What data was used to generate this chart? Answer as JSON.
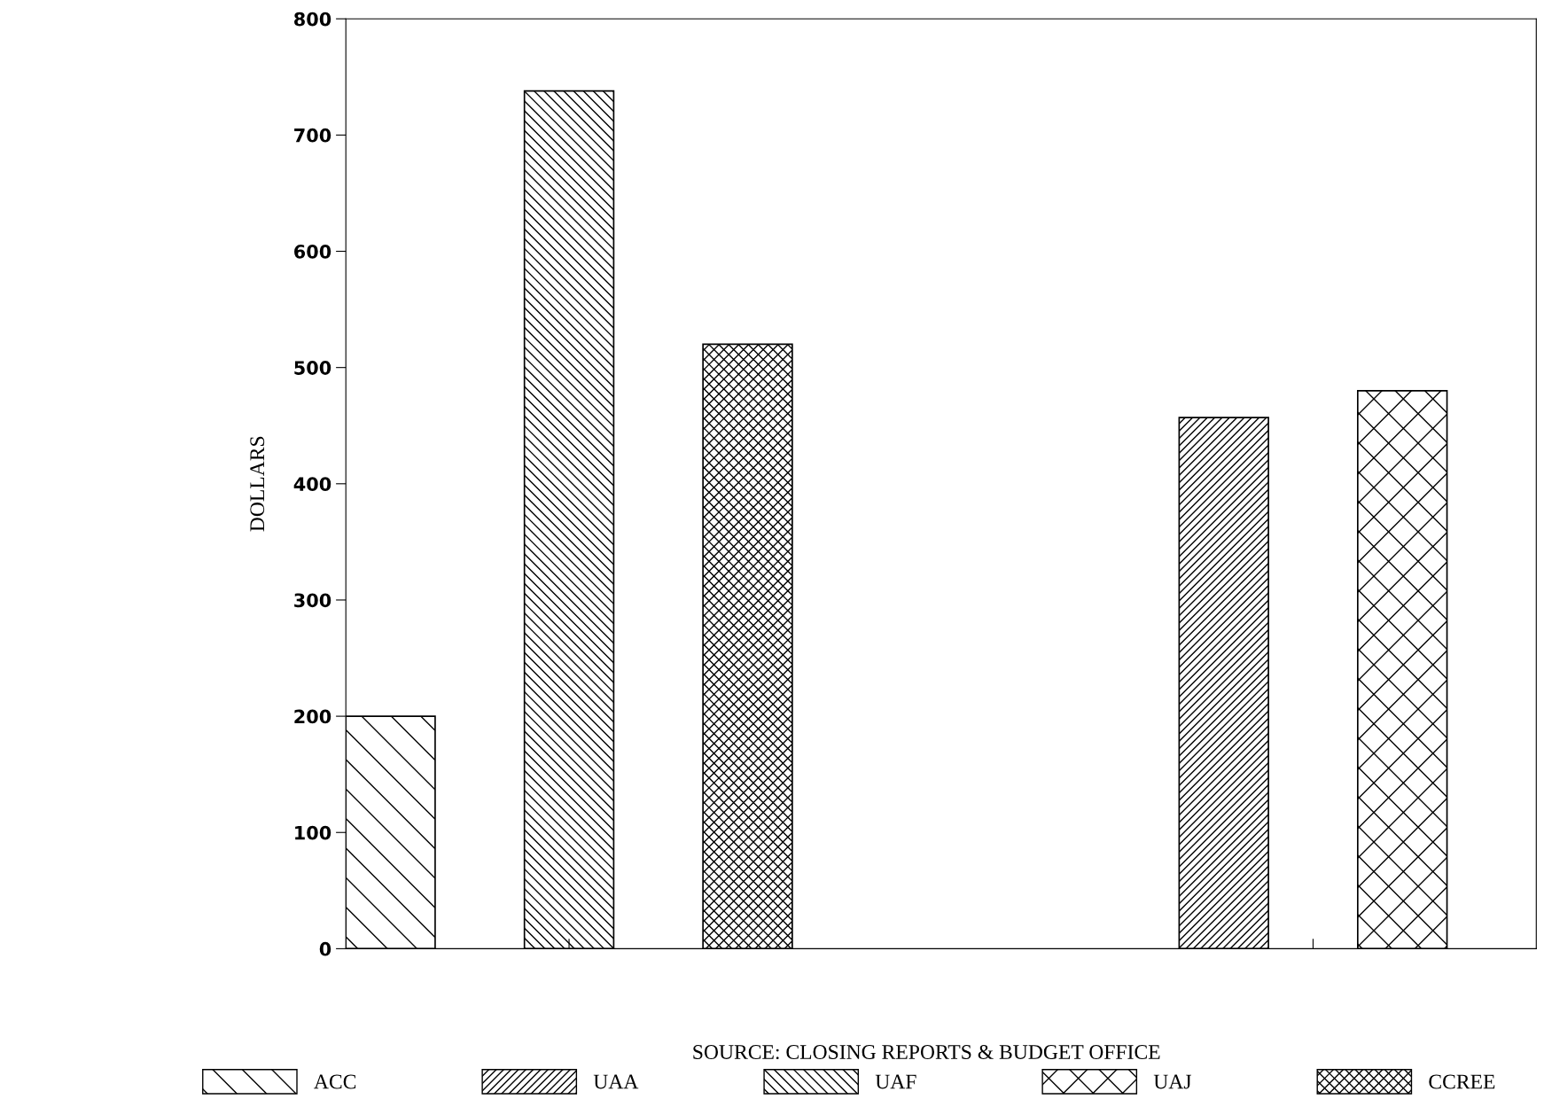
{
  "chart_data": {
    "type": "bar",
    "ylabel": "DOLLARS",
    "categories": [
      null,
      null
    ],
    "series": [
      {
        "name": "ACC",
        "color": "#000000",
        "values": [
          200,
          null
        ]
      },
      {
        "name": "UAA",
        "color": "#000000",
        "values": [
          null,
          457
        ]
      },
      {
        "name": "UAF",
        "color": "#000000",
        "values": [
          738,
          null
        ]
      },
      {
        "name": "UAJ",
        "color": "#000000",
        "values": [
          null,
          480
        ]
      },
      {
        "name": "CCREE",
        "color": "#000000",
        "values": [
          520,
          null
        ]
      }
    ],
    "ylim": [
      0,
      800
    ],
    "yticks": [
      0,
      100,
      200,
      300,
      400,
      500,
      600,
      700,
      800
    ],
    "tick_labels": "y",
    "grid": false,
    "legend": "bottom",
    "annotations": [
      "SOURCE: CLOSING REPORTS & BUDGET OFFICE"
    ]
  }
}
